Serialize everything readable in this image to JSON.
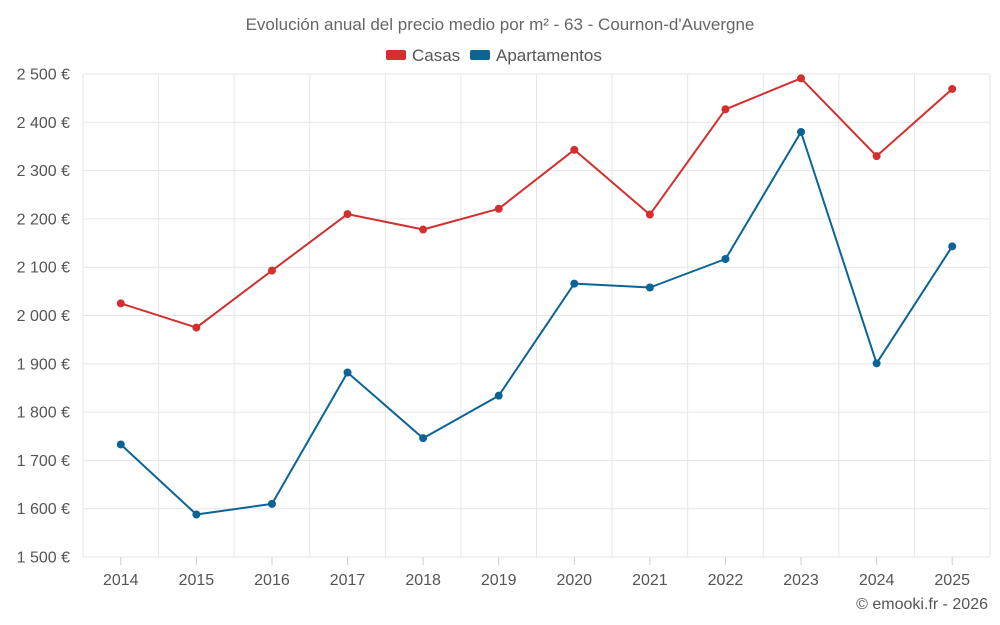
{
  "chart_data": {
    "type": "line",
    "title": "Evolución anual del precio medio por m² - 63 - Cournon-d'Auvergne",
    "categories": [
      "2014",
      "2015",
      "2016",
      "2017",
      "2018",
      "2019",
      "2020",
      "2021",
      "2022",
      "2023",
      "2024",
      "2025"
    ],
    "y_ticks": [
      "1 500 €",
      "1 600 €",
      "1 700 €",
      "1 800 €",
      "1 900 €",
      "2 000 €",
      "2 100 €",
      "2 200 €",
      "2 300 €",
      "2 400 €",
      "2 500 €"
    ],
    "ylim": [
      1500,
      2500
    ],
    "grid": true,
    "legend_position": "top-center",
    "series": [
      {
        "name": "Casas",
        "color": "#d32f2f",
        "values": [
          2025,
          1975,
          2093,
          2210,
          2178,
          2221,
          2343,
          2209,
          2427,
          2491,
          2330,
          2469
        ]
      },
      {
        "name": "Apartamentos",
        "color": "#0b6396",
        "values": [
          1733,
          1588,
          1610,
          1882,
          1746,
          1834,
          2066,
          2058,
          2117,
          2380,
          1901,
          2143
        ]
      }
    ],
    "credit": "© emooki.fr - 2026"
  }
}
